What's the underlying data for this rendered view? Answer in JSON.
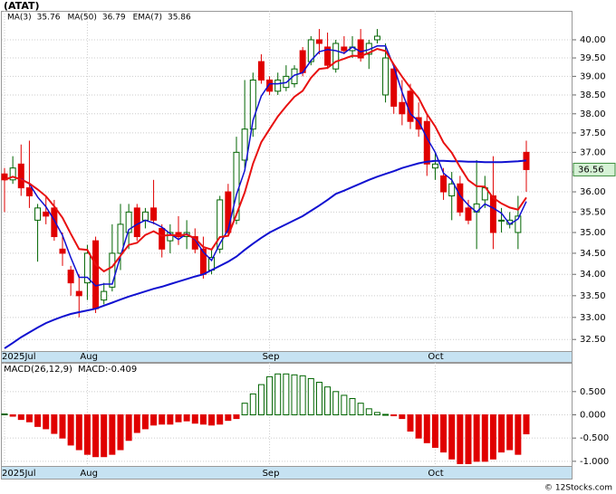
{
  "chart_data": [
    {
      "type": "candlestick",
      "title": "(ATAT)",
      "log": true,
      "grid": true,
      "up_color": "#006400",
      "down_color": "#e00000",
      "categories": [
        "2025Jul",
        null,
        null,
        null,
        null,
        null,
        null,
        null,
        null,
        null,
        "Aug",
        null,
        null,
        null,
        null,
        null,
        null,
        null,
        null,
        null,
        null,
        null,
        null,
        null,
        null,
        null,
        null,
        null,
        null,
        null,
        null,
        null,
        "Sep",
        null,
        null,
        null,
        null,
        null,
        null,
        null,
        null,
        null,
        null,
        null,
        null,
        null,
        null,
        null,
        null,
        null,
        null,
        null,
        "Oct",
        null,
        null,
        null,
        null,
        null,
        null,
        null,
        null,
        null,
        null,
        null
      ],
      "open": [
        36.45,
        36.3,
        36.7,
        36.1,
        35.3,
        35.5,
        35.6,
        34.6,
        34.1,
        33.6,
        33.8,
        34.8,
        33.4,
        33.7,
        34.5,
        35.0,
        35.6,
        35.3,
        35.6,
        35.1,
        34.8,
        35.0,
        34.9,
        34.9,
        34.6,
        34.1,
        34.6,
        36.0,
        35.3,
        36.8,
        37.6,
        39.4,
        38.9,
        38.6,
        38.7,
        38.8,
        39.7,
        39.4,
        40.0,
        39.8,
        39.2,
        39.8,
        39.7,
        40.0,
        39.6,
        40.0,
        38.5,
        39.2,
        38.3,
        38.6,
        37.9,
        37.8,
        36.6,
        36.4,
        35.9,
        36.2,
        35.6,
        35.5,
        35.8,
        35.9,
        35.3,
        35.2,
        35.0,
        37.0
      ],
      "high": [
        36.6,
        36.9,
        37.2,
        37.3,
        35.7,
        35.9,
        35.8,
        35.0,
        34.2,
        34.0,
        34.7,
        34.9,
        33.8,
        35.2,
        35.7,
        35.7,
        35.7,
        35.6,
        36.3,
        35.2,
        35.2,
        35.4,
        35.3,
        35.1,
        34.9,
        34.6,
        35.9,
        36.2,
        37.4,
        38.9,
        39.1,
        39.6,
        39.0,
        39.1,
        39.3,
        39.3,
        39.8,
        40.1,
        40.3,
        40.2,
        40.0,
        40.1,
        40.1,
        40.3,
        40.0,
        40.3,
        39.9,
        39.3,
        38.9,
        38.8,
        38.3,
        38.0,
        37.0,
        36.6,
        36.5,
        36.4,
        35.8,
        36.8,
        36.4,
        36.9,
        35.6,
        35.5,
        35.9,
        37.3
      ],
      "low": [
        35.5,
        36.2,
        35.9,
        35.6,
        34.3,
        35.2,
        34.8,
        34.2,
        33.5,
        33.0,
        33.4,
        33.1,
        33.3,
        33.6,
        34.1,
        34.6,
        34.8,
        35.1,
        35.2,
        34.4,
        34.5,
        34.7,
        34.6,
        34.5,
        33.9,
        34.0,
        34.5,
        34.9,
        35.2,
        36.6,
        37.4,
        38.8,
        38.5,
        38.5,
        38.6,
        38.7,
        39.0,
        39.3,
        39.6,
        39.2,
        39.1,
        39.6,
        39.5,
        39.4,
        39.2,
        39.9,
        38.3,
        38.0,
        37.7,
        37.6,
        37.4,
        36.4,
        36.3,
        35.8,
        35.3,
        35.4,
        35.2,
        34.6,
        35.6,
        34.6,
        35.0,
        35.1,
        34.6,
        36.0
      ],
      "close": [
        36.3,
        36.6,
        36.1,
        35.9,
        35.6,
        35.4,
        34.9,
        34.5,
        33.8,
        33.5,
        34.5,
        33.2,
        33.6,
        34.5,
        35.2,
        35.5,
        34.9,
        35.5,
        35.3,
        34.6,
        35.0,
        34.9,
        35.0,
        34.6,
        34.0,
        34.4,
        35.8,
        35.0,
        37.0,
        37.6,
        38.9,
        38.9,
        38.6,
        38.9,
        39.0,
        39.2,
        39.1,
        40.0,
        39.9,
        39.3,
        39.9,
        39.7,
        39.8,
        39.5,
        39.9,
        40.1,
        39.5,
        38.2,
        38.0,
        37.8,
        37.6,
        36.7,
        36.7,
        36.0,
        36.2,
        35.5,
        35.3,
        35.7,
        36.1,
        35.0,
        35.3,
        35.3,
        35.4,
        36.56
      ],
      "series": [
        {
          "name": "MA(3)",
          "legend_value": 35.76,
          "color": "#1010d0",
          "width": 1.5,
          "values": [
            null,
            null,
            36.33,
            36.2,
            35.87,
            35.63,
            35.3,
            34.93,
            34.4,
            33.93,
            33.93,
            33.73,
            33.77,
            33.77,
            34.43,
            35.07,
            35.2,
            35.3,
            35.23,
            35.13,
            34.97,
            34.83,
            34.97,
            34.83,
            34.53,
            34.33,
            34.73,
            35.07,
            35.93,
            36.53,
            37.83,
            38.47,
            38.8,
            38.8,
            38.83,
            39.03,
            39.1,
            39.43,
            39.67,
            39.73,
            39.7,
            39.63,
            39.8,
            39.67,
            39.73,
            39.83,
            39.83,
            39.27,
            38.57,
            38.0,
            37.8,
            37.37,
            37.0,
            36.47,
            36.3,
            35.9,
            35.67,
            35.5,
            35.7,
            35.6,
            35.47,
            35.2,
            35.33,
            35.76
          ]
        },
        {
          "name": "MA(50)",
          "legend_value": 36.79,
          "color": "#1010d0",
          "width": 2,
          "values": [
            32.3,
            32.42,
            32.55,
            32.66,
            32.77,
            32.87,
            32.95,
            33.02,
            33.08,
            33.12,
            33.16,
            33.2,
            33.27,
            33.34,
            33.41,
            33.48,
            33.54,
            33.6,
            33.66,
            33.71,
            33.77,
            33.83,
            33.89,
            33.95,
            34.0,
            34.1,
            34.2,
            34.3,
            34.42,
            34.58,
            34.73,
            34.87,
            35.0,
            35.1,
            35.2,
            35.3,
            35.4,
            35.53,
            35.66,
            35.8,
            35.95,
            36.03,
            36.12,
            36.21,
            36.3,
            36.38,
            36.45,
            36.52,
            36.6,
            36.66,
            36.72,
            36.76,
            36.78,
            36.78,
            36.77,
            36.77,
            36.76,
            36.76,
            36.75,
            36.75,
            36.75,
            36.76,
            36.77,
            36.79
          ]
        },
        {
          "name": "EMA(7)",
          "legend_value": 35.86,
          "color": "#e81010",
          "width": 2,
          "values": [
            36.3,
            36.38,
            36.31,
            36.21,
            36.06,
            35.89,
            35.64,
            35.36,
            34.97,
            34.6,
            34.58,
            34.23,
            34.07,
            34.18,
            34.44,
            34.7,
            34.75,
            34.94,
            35.03,
            34.92,
            34.94,
            34.93,
            34.95,
            34.86,
            34.65,
            34.59,
            34.89,
            34.92,
            35.44,
            35.98,
            36.71,
            37.26,
            37.6,
            37.93,
            38.2,
            38.45,
            38.61,
            38.96,
            39.2,
            39.23,
            39.4,
            39.48,
            39.56,
            39.55,
            39.64,
            39.75,
            39.69,
            39.32,
            38.99,
            38.69,
            38.42,
            37.99,
            37.67,
            37.25,
            36.99,
            36.62,
            36.29,
            36.14,
            36.13,
            35.85,
            35.71,
            35.61,
            35.56,
            35.86
          ]
        }
      ],
      "ylim": [
        32.24,
        40.81
      ],
      "yticks": [
        {
          "value": 32.5,
          "label": "32.50"
        },
        {
          "value": 33,
          "label": "33.00"
        },
        {
          "value": 33.5,
          "label": "33.50"
        },
        {
          "value": 34,
          "label": "34.00"
        },
        {
          "value": 34.5,
          "label": "34.50"
        },
        {
          "value": 35,
          "label": "35.00"
        },
        {
          "value": 35.5,
          "label": "35.50"
        },
        {
          "value": 36,
          "label": "36.00"
        },
        {
          "value": 36.5,
          "label": "36.50"
        },
        {
          "value": 37,
          "label": "37.00"
        },
        {
          "value": 37.5,
          "label": "37.50"
        },
        {
          "value": 38,
          "label": "38.00"
        },
        {
          "value": 38.5,
          "label": "38.50"
        },
        {
          "value": 39,
          "label": "39.00"
        },
        {
          "value": 39.5,
          "label": "39.50"
        },
        {
          "value": 40,
          "label": "40.00"
        }
      ]
    },
    {
      "type": "bar",
      "title": "MACD(26,12,9)",
      "value_prefix": "MACD:",
      "current": -0.409,
      "pos_color": "#006400",
      "neg_color": "#e00000",
      "grid": true,
      "categories": [
        "2025Jul",
        null,
        null,
        null,
        null,
        null,
        null,
        null,
        null,
        null,
        "Aug",
        null,
        null,
        null,
        null,
        null,
        null,
        null,
        null,
        null,
        null,
        null,
        null,
        null,
        null,
        null,
        null,
        null,
        null,
        null,
        null,
        null,
        "Sep",
        null,
        null,
        null,
        null,
        null,
        null,
        null,
        null,
        null,
        null,
        null,
        null,
        null,
        null,
        null,
        null,
        null,
        null,
        null,
        "Oct",
        null,
        null,
        null,
        null,
        null,
        null,
        null,
        null,
        null,
        null,
        null
      ],
      "values": [
        0.02,
        -0.03,
        -0.1,
        -0.15,
        -0.25,
        -0.3,
        -0.4,
        -0.5,
        -0.65,
        -0.75,
        -0.85,
        -0.9,
        -0.9,
        -0.85,
        -0.75,
        -0.55,
        -0.38,
        -0.3,
        -0.22,
        -0.2,
        -0.2,
        -0.15,
        -0.13,
        -0.18,
        -0.2,
        -0.22,
        -0.2,
        -0.12,
        -0.08,
        0.25,
        0.45,
        0.65,
        0.82,
        0.88,
        0.88,
        0.86,
        0.84,
        0.78,
        0.7,
        0.6,
        0.5,
        0.42,
        0.35,
        0.25,
        0.13,
        0.05,
        0.01,
        -0.02,
        -0.08,
        -0.35,
        -0.5,
        -0.6,
        -0.7,
        -0.8,
        -0.95,
        -1.05,
        -1.05,
        -1.0,
        -1.0,
        -0.95,
        -0.8,
        -0.75,
        -0.85,
        -0.409
      ],
      "ylim": [
        -1.1,
        1.1
      ],
      "yticks": [
        {
          "value": -1,
          "label": "-1.000"
        },
        {
          "value": -0.5,
          "label": "-0.500"
        },
        {
          "value": 0,
          "label": "0.000"
        },
        {
          "value": 0.5,
          "label": "0.500"
        }
      ]
    }
  ],
  "watermark": "© 12Stocks.com"
}
